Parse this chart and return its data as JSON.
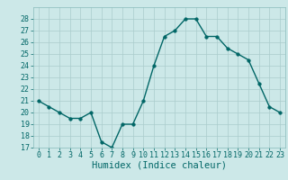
{
  "x": [
    0,
    1,
    2,
    3,
    4,
    5,
    6,
    7,
    8,
    9,
    10,
    11,
    12,
    13,
    14,
    15,
    16,
    17,
    18,
    19,
    20,
    21,
    22,
    23
  ],
  "y": [
    21,
    20.5,
    20,
    19.5,
    19.5,
    20,
    17.5,
    17,
    19,
    19,
    21,
    24,
    26.5,
    27,
    28,
    28,
    26.5,
    26.5,
    25.5,
    25,
    24.5,
    22.5,
    20.5,
    20
  ],
  "line_color": "#006666",
  "marker_color": "#006666",
  "bg_color": "#cce8e8",
  "grid_color": "#aacccc",
  "xlabel": "Humidex (Indice chaleur)",
  "ylim": [
    17,
    29
  ],
  "xlim": [
    -0.5,
    23.5
  ],
  "yticks": [
    17,
    18,
    19,
    20,
    21,
    22,
    23,
    24,
    25,
    26,
    27,
    28
  ],
  "xticks": [
    0,
    1,
    2,
    3,
    4,
    5,
    6,
    7,
    8,
    9,
    10,
    11,
    12,
    13,
    14,
    15,
    16,
    17,
    18,
    19,
    20,
    21,
    22,
    23
  ],
  "xtick_labels": [
    "0",
    "1",
    "2",
    "3",
    "4",
    "5",
    "6",
    "7",
    "8",
    "9",
    "10",
    "11",
    "12",
    "13",
    "14",
    "15",
    "16",
    "17",
    "18",
    "19",
    "20",
    "21",
    "22",
    "23"
  ],
  "linewidth": 1.0,
  "markersize": 2.5,
  "tick_fontsize": 6.0,
  "xlabel_fontsize": 7.5
}
